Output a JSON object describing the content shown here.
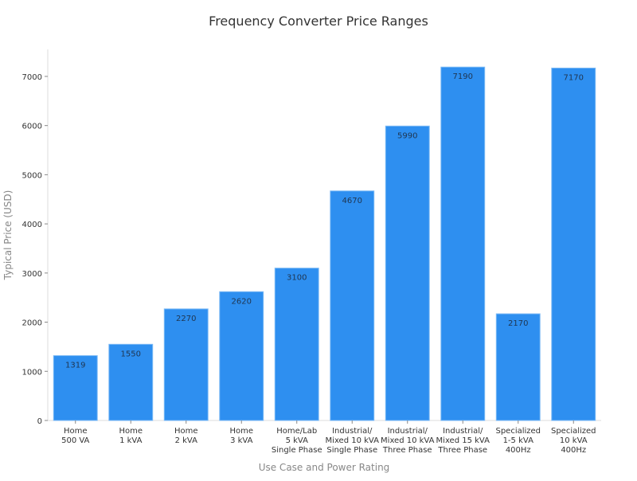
{
  "chart_data": {
    "type": "bar",
    "title": "Frequency Converter Price Ranges",
    "xlabel": "Use Case and Power Rating",
    "ylabel": "Typical Price (USD)",
    "categories": [
      [
        "Home",
        "500 VA"
      ],
      [
        "Home",
        "1 kVA"
      ],
      [
        "Home",
        "2 kVA"
      ],
      [
        "Home",
        "3 kVA"
      ],
      [
        "Home/Lab",
        "5 kVA",
        "Single Phase"
      ],
      [
        "Industrial/",
        "Mixed 10 kVA",
        "Single Phase"
      ],
      [
        "Industrial/",
        "Mixed 10 kVA",
        "Three Phase"
      ],
      [
        "Industrial/",
        "Mixed 15 kVA",
        "Three Phase"
      ],
      [
        "Specialized",
        "1-5 kVA",
        "400Hz"
      ],
      [
        "Specialized",
        "10 kVA",
        "400Hz"
      ]
    ],
    "values": [
      1319,
      1550,
      2270,
      2620,
      3100,
      4670,
      5990,
      7190,
      2170,
      7170
    ],
    "yticks": [
      0,
      1000,
      2000,
      3000,
      4000,
      5000,
      6000,
      7000
    ],
    "ylim": [
      0,
      7550
    ],
    "grid": false,
    "bar_color": "#2e8ff0",
    "bar_edge_color": "#7dbaf5",
    "label_color": "#1f3550"
  }
}
